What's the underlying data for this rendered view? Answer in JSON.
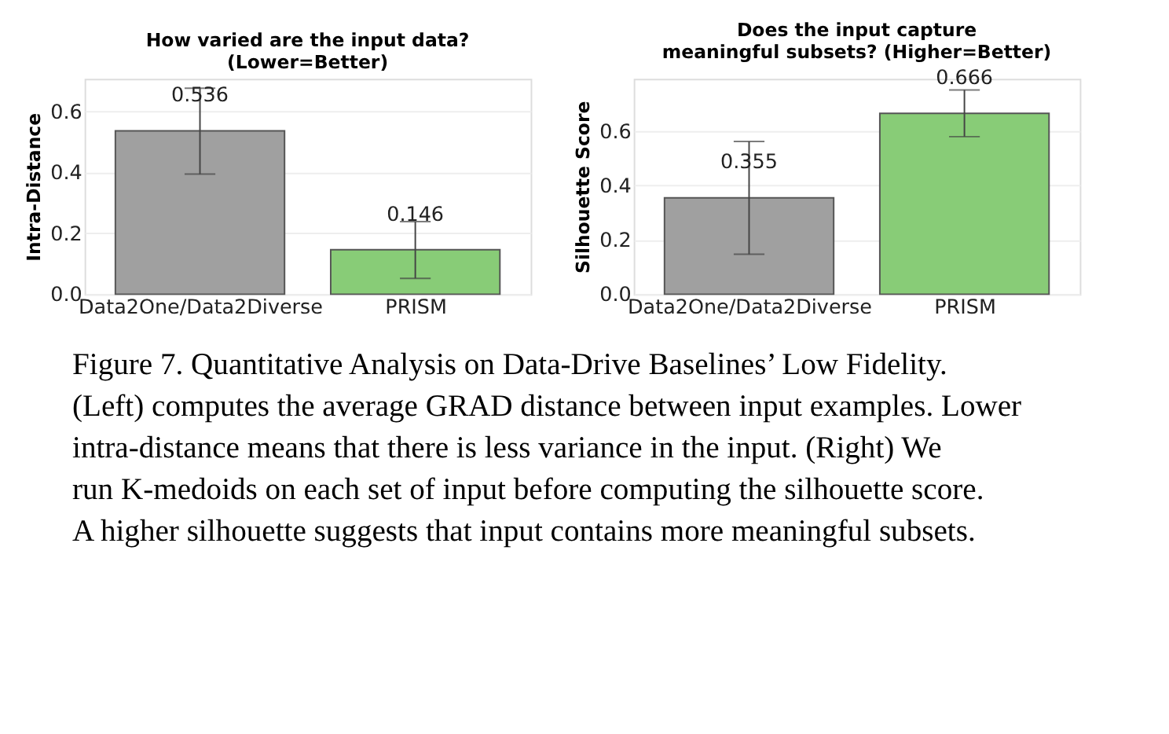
{
  "chart_data": [
    {
      "type": "bar",
      "title": "How varied are the input data?\n(Lower=Better)",
      "ylabel": "Intra-Distance",
      "categories": [
        "Data2One/Data2Diverse",
        "PRISM"
      ],
      "values": [
        0.536,
        0.146
      ],
      "colors": [
        "#a0a0a0",
        "#88cc77"
      ],
      "errors": [
        [
          0.394,
          0.676
        ],
        [
          0.052,
          0.238
        ]
      ],
      "ylim": [
        0,
        0.707
      ],
      "yticks": [
        {
          "value": 0,
          "label": "0.0"
        },
        {
          "value": 0.2,
          "label": "0.2"
        },
        {
          "value": 0.4,
          "label": "0.4"
        },
        {
          "value": 0.6,
          "label": "0.6"
        }
      ],
      "grid": "y",
      "data_labels": true
    },
    {
      "type": "bar",
      "title": "Does the input capture\nmeaningful subsets? (Higher=Better)",
      "ylabel": "Silhouette Score",
      "categories": [
        "Data2One/Data2Diverse",
        "PRISM"
      ],
      "values": [
        0.355,
        0.666
      ],
      "colors": [
        "#a0a0a0",
        "#88cc77"
      ],
      "errors": [
        [
          0.147,
          0.562
        ],
        [
          0.58,
          0.752
        ]
      ],
      "ylim": [
        0,
        0.793
      ],
      "yticks": [
        {
          "value": 0,
          "label": "0.0"
        },
        {
          "value": 0.2,
          "label": "0.2"
        },
        {
          "value": 0.4,
          "label": "0.4"
        },
        {
          "value": 0.6,
          "label": "0.6"
        }
      ],
      "grid": "y",
      "data_labels": true,
      "annotations": [
        "Figure 7. Quantitative Analysis on Data-Drive Baselines’ Low Fidelity. (Left) computes the average GRAD distance between input examples. Lower intra-distance means that there is less variance in the input. (Right) We run K-medoids on each set of input before computing the silhouette score. A higher silhouette suggests that input contains more meaningful subsets."
      ]
    }
  ]
}
